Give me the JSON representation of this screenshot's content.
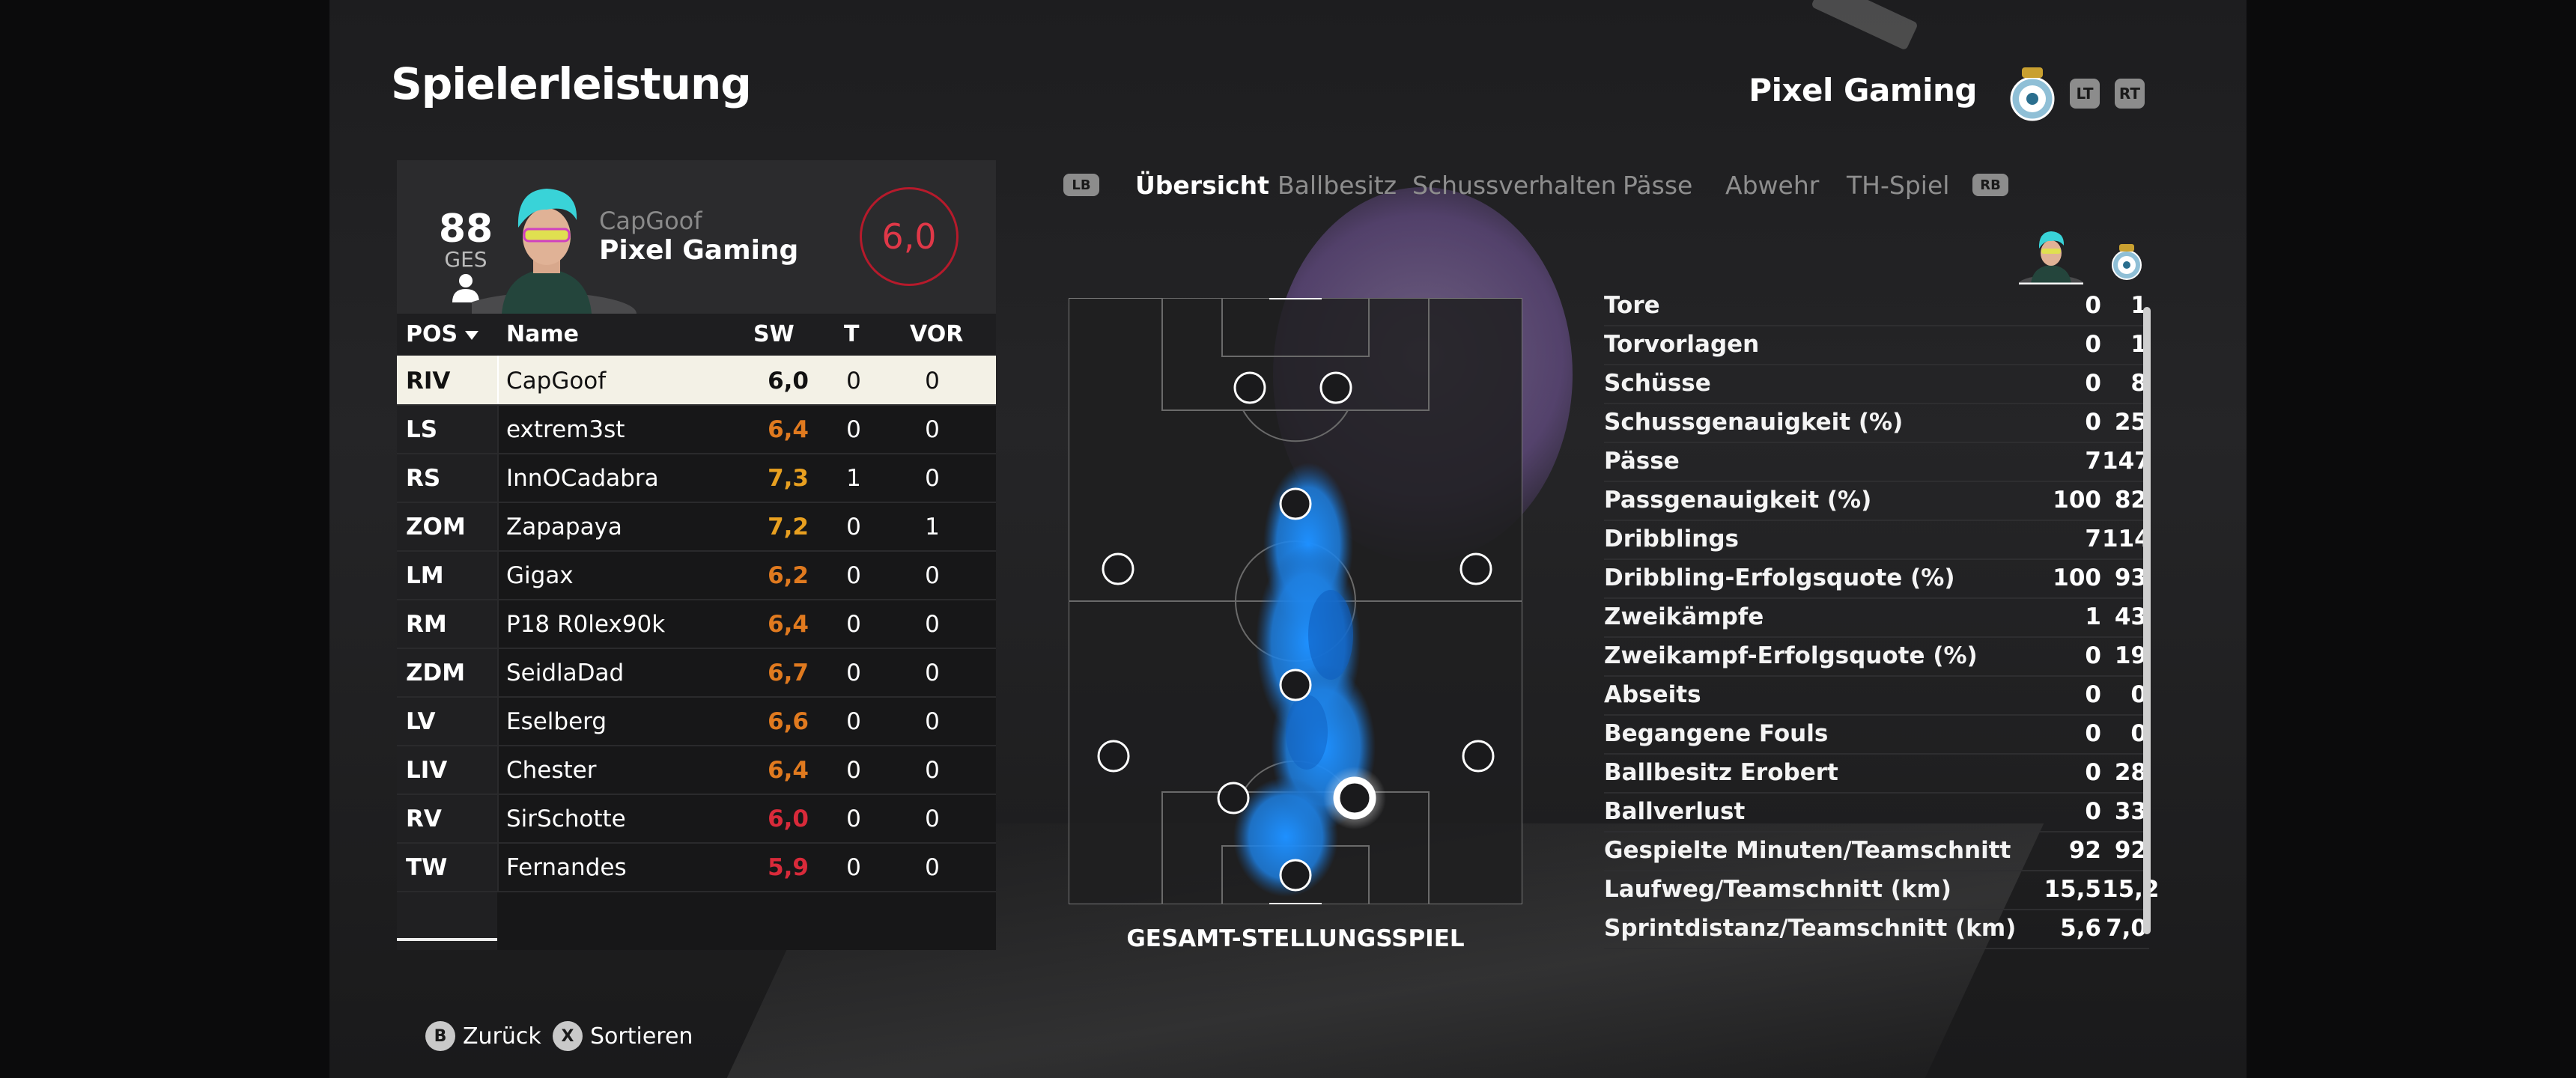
{
  "header": {
    "title": "Spielerleistung",
    "team_name": "Pixel Gaming",
    "lt_label": "LT",
    "rt_label": "RT"
  },
  "player_card": {
    "overall": "88",
    "overall_label": "GES",
    "gamertag": "CapGoof",
    "team": "Pixel Gaming",
    "rating": "6,0"
  },
  "table": {
    "headers": {
      "pos": "POS",
      "name": "Name",
      "sw": "SW",
      "t": "T",
      "vor": "VOR"
    },
    "rows": [
      {
        "pos": "RIV",
        "name": "CapGoof",
        "sw": "6,0",
        "t": "0",
        "vor": "0",
        "color": "#111111"
      },
      {
        "pos": "LS",
        "name": "extrem3st",
        "sw": "6,4",
        "t": "0",
        "vor": "0",
        "color": "#e07a1f"
      },
      {
        "pos": "RS",
        "name": "InnOCadabra",
        "sw": "7,3",
        "t": "1",
        "vor": "0",
        "color": "#e8a020"
      },
      {
        "pos": "ZOM",
        "name": "Zapapaya",
        "sw": "7,2",
        "t": "0",
        "vor": "1",
        "color": "#e8a020"
      },
      {
        "pos": "LM",
        "name": "Gigax",
        "sw": "6,2",
        "t": "0",
        "vor": "0",
        "color": "#e07a1f"
      },
      {
        "pos": "RM",
        "name": "P18 R0lex90k",
        "sw": "6,4",
        "t": "0",
        "vor": "0",
        "color": "#e07a1f"
      },
      {
        "pos": "ZDM",
        "name": "SeidlaDad",
        "sw": "6,7",
        "t": "0",
        "vor": "0",
        "color": "#e07a1f"
      },
      {
        "pos": "LV",
        "name": "Eselberg",
        "sw": "6,6",
        "t": "0",
        "vor": "0",
        "color": "#e07a1f"
      },
      {
        "pos": "LIV",
        "name": "Chester",
        "sw": "6,4",
        "t": "0",
        "vor": "0",
        "color": "#e07a1f"
      },
      {
        "pos": "RV",
        "name": "SirSchotte",
        "sw": "6,0",
        "t": "0",
        "vor": "0",
        "color": "#d92a3a"
      },
      {
        "pos": "TW",
        "name": "Fernandes",
        "sw": "5,9",
        "t": "0",
        "vor": "0",
        "color": "#d92a3a"
      }
    ]
  },
  "tabs": {
    "lb": "LB",
    "rb": "RB",
    "items": [
      "Übersicht",
      "Ballbesitz",
      "Schussverhalten",
      "Pässe",
      "Abwehr",
      "TH-Spiel"
    ],
    "active": "Übersicht"
  },
  "pitch": {
    "caption": "GESAMT-STELLUNGSSPIEL"
  },
  "stats": [
    {
      "label": "Tore",
      "player": "0",
      "team": "1"
    },
    {
      "label": "Torvorlagen",
      "player": "0",
      "team": "1"
    },
    {
      "label": "Schüsse",
      "player": "0",
      "team": "8"
    },
    {
      "label": "Schussgenauigkeit (%)",
      "player": "0",
      "team": "25"
    },
    {
      "label": "Pässe",
      "player": "7",
      "team": "147"
    },
    {
      "label": "Passgenauigkeit (%)",
      "player": "100",
      "team": "82"
    },
    {
      "label": "Dribblings",
      "player": "7",
      "team": "114"
    },
    {
      "label": "Dribbling-Erfolgsquote (%)",
      "player": "100",
      "team": "93"
    },
    {
      "label": "Zweikämpfe",
      "player": "1",
      "team": "43"
    },
    {
      "label": "Zweikampf-Erfolgsquote (%)",
      "player": "0",
      "team": "19"
    },
    {
      "label": "Abseits",
      "player": "0",
      "team": "0"
    },
    {
      "label": "Begangene Fouls",
      "player": "0",
      "team": "0"
    },
    {
      "label": "Ballbesitz Erobert",
      "player": "0",
      "team": "28"
    },
    {
      "label": "Ballverlust",
      "player": "0",
      "team": "33"
    },
    {
      "label": "Gespielte Minuten/Teamschnitt",
      "player": "92",
      "team": "92"
    },
    {
      "label": "Laufweg/Teamschnitt (km)",
      "player": "15,5",
      "team": "15,2"
    },
    {
      "label": "Sprintdistanz/Teamschnitt (km)",
      "player": "5,6",
      "team": "7,0"
    }
  ],
  "footer": {
    "back_key": "B",
    "back_label": "Zurück",
    "sort_key": "X",
    "sort_label": "Sortieren"
  },
  "colors": {
    "rating_red": "#d92a3a",
    "rating_orange": "#e07a1f",
    "rating_yellow": "#e8a020",
    "heatmap_blue": "#1e90ff"
  }
}
